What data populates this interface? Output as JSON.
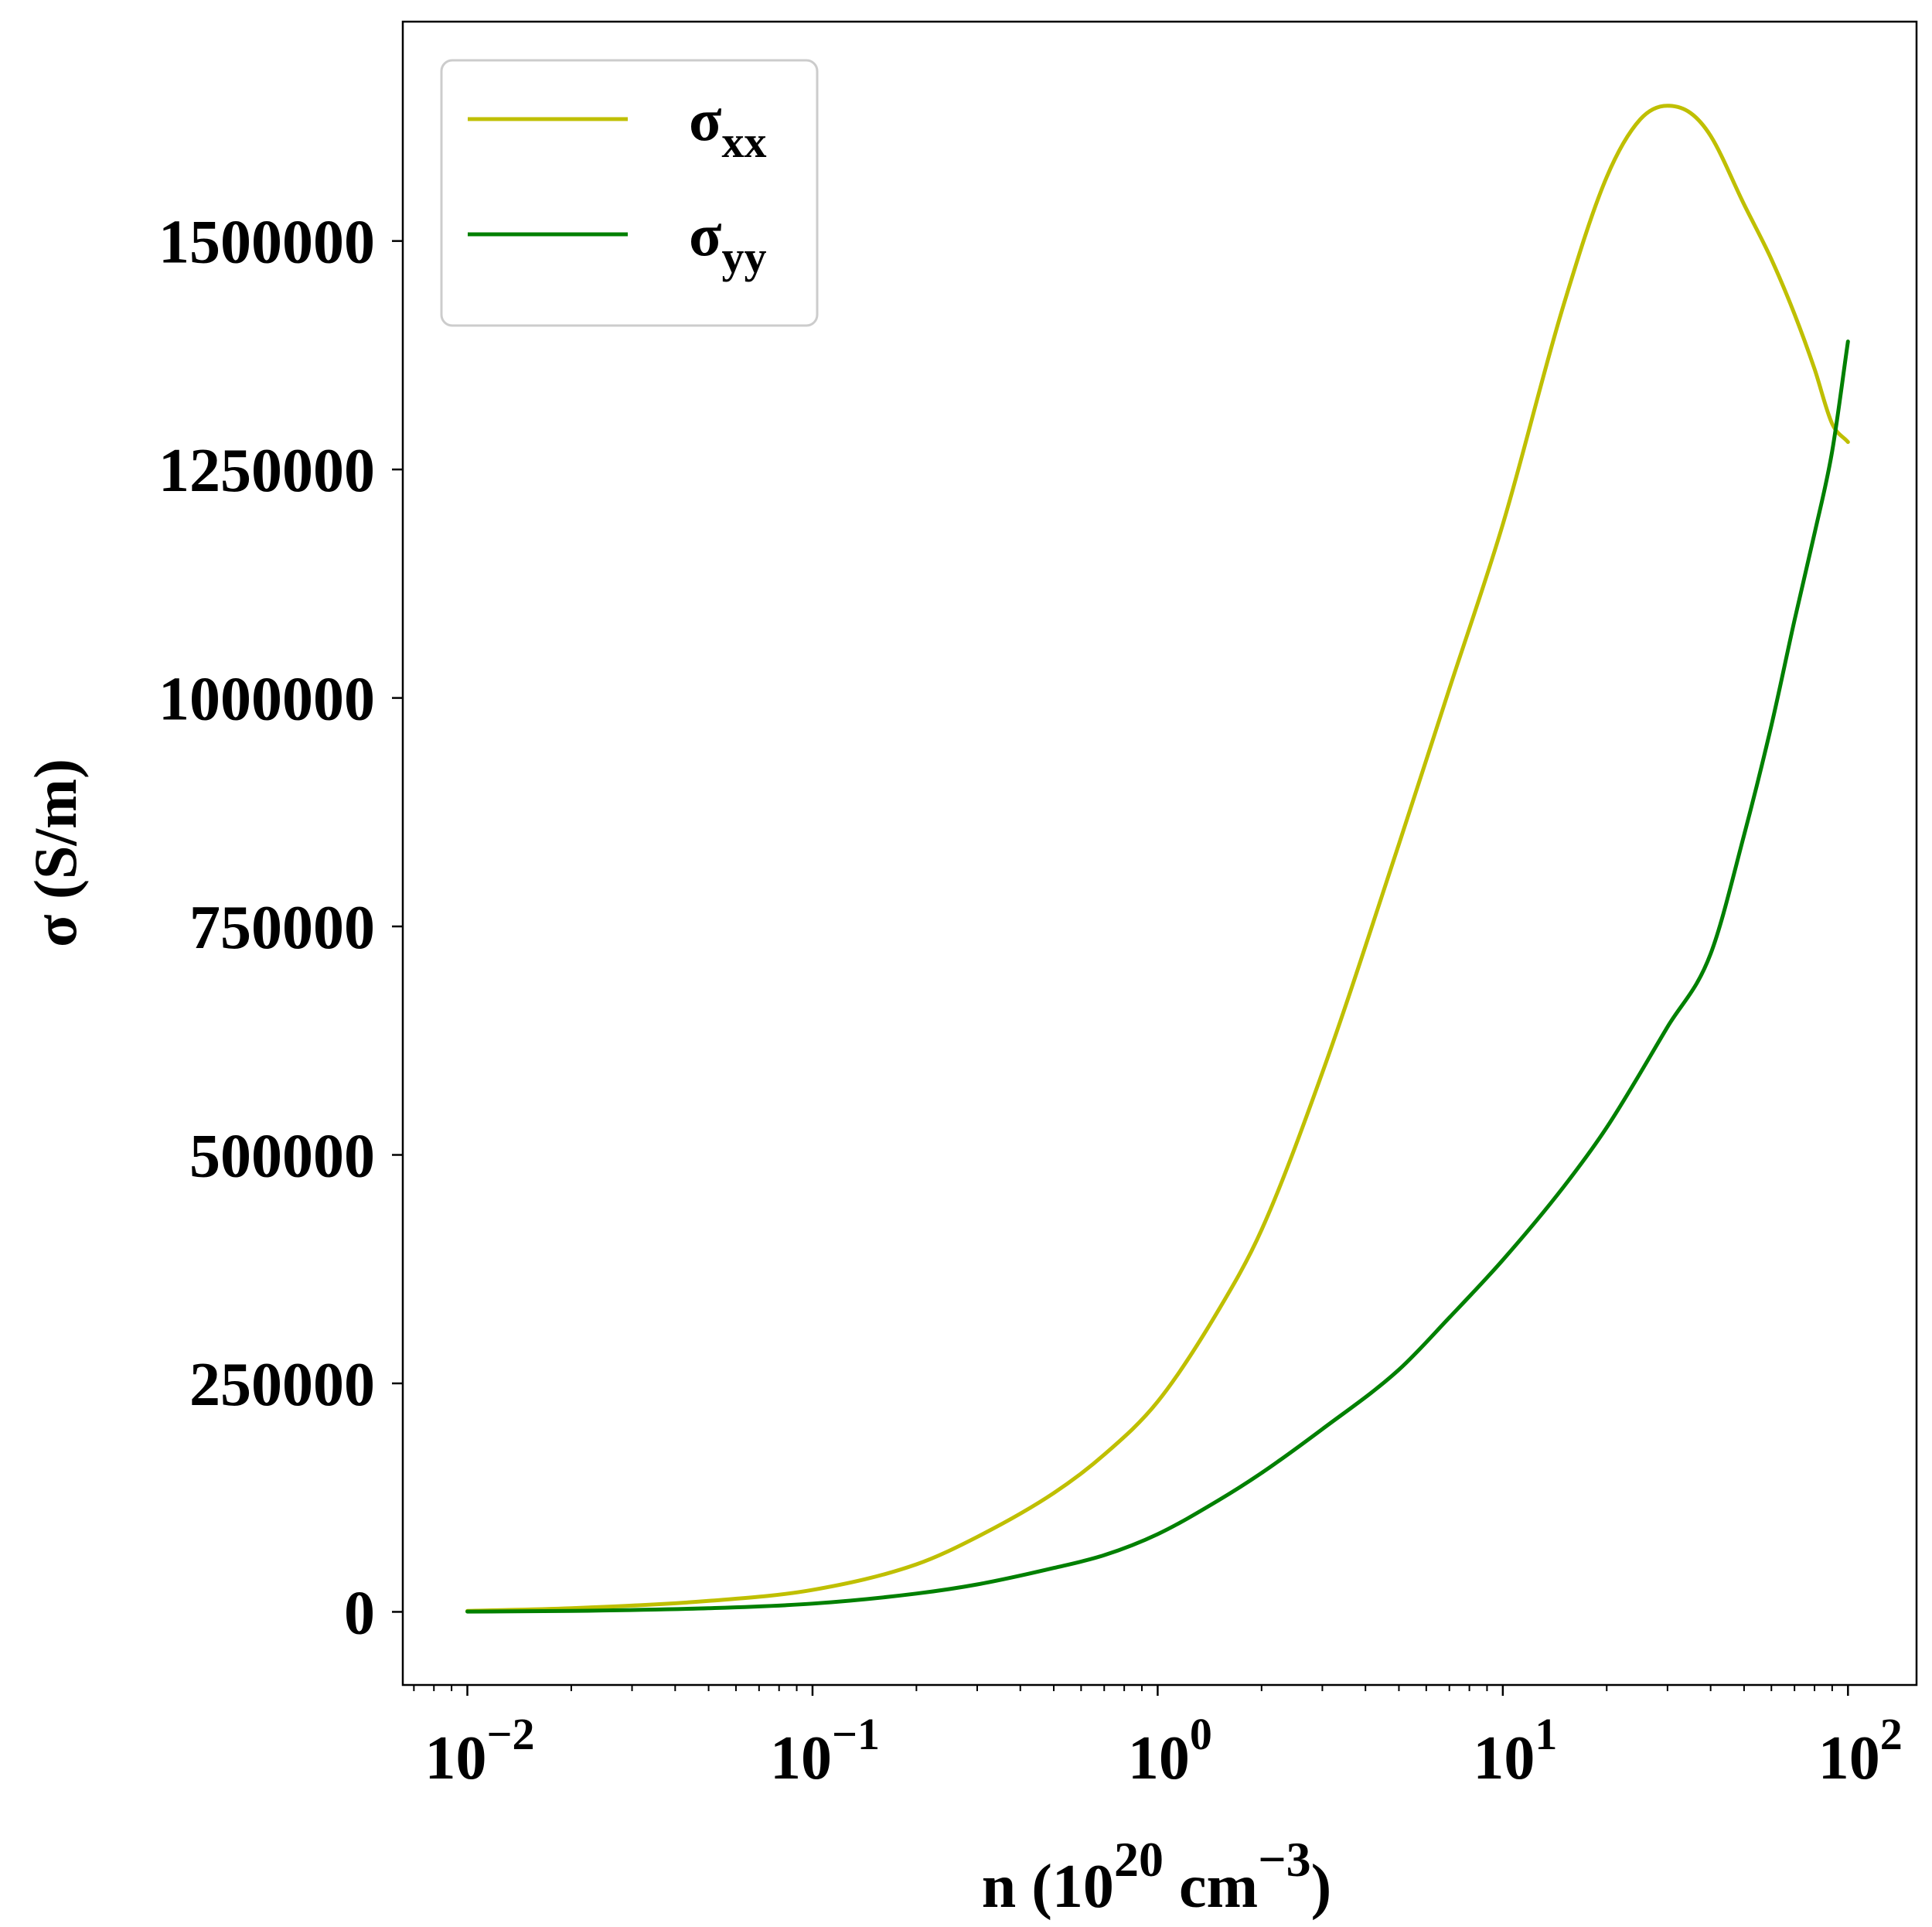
{
  "chart_data": {
    "type": "line",
    "x_scale": "log",
    "xlabel": {
      "base": "n (10",
      "sup1": "20",
      "mid": " cm",
      "sup2": "−3",
      "end": ")"
    },
    "ylabel": "σ (S/m)",
    "xlim": [
      0.0065,
      158
    ],
    "ylim": [
      -80000,
      1740000
    ],
    "x_ticks": [
      {
        "value": 0.01,
        "base": "10",
        "exp": "−2"
      },
      {
        "value": 0.1,
        "base": "10",
        "exp": "−1"
      },
      {
        "value": 1,
        "base": "10",
        "exp": "0"
      },
      {
        "value": 10,
        "base": "10",
        "exp": "1"
      },
      {
        "value": 100,
        "base": "10",
        "exp": "2"
      }
    ],
    "y_ticks": [
      {
        "value": 0,
        "label": "0"
      },
      {
        "value": 250000,
        "label": "250000"
      },
      {
        "value": 500000,
        "label": "500000"
      },
      {
        "value": 750000,
        "label": "750000"
      },
      {
        "value": 1000000,
        "label": "1000000"
      },
      {
        "value": 1250000,
        "label": "1250000"
      },
      {
        "value": 1500000,
        "label": "1500000"
      }
    ],
    "grid": false,
    "legend": {
      "position": "top-left"
    },
    "series": [
      {
        "name_main": "σ",
        "name_sub": "xx",
        "color": "#bfbf00",
        "x": [
          0.01,
          0.02,
          0.05,
          0.1,
          0.2,
          0.3,
          0.5,
          0.7,
          1,
          1.5,
          2,
          3,
          5,
          7,
          10,
          15,
          20,
          25,
          30,
          35,
          40,
          50,
          60,
          70,
          80,
          90,
          100
        ],
        "y": [
          1000,
          4000,
          12000,
          24000,
          52000,
          82000,
          130000,
          172000,
          230000,
          330000,
          418000,
          590000,
          840000,
          1010000,
          1190000,
          1430000,
          1570000,
          1633000,
          1648000,
          1640000,
          1615000,
          1540000,
          1480000,
          1420000,
          1360000,
          1300000,
          1280000
        ]
      },
      {
        "name_main": "σ",
        "name_sub": "yy",
        "color": "#008000",
        "x": [
          0.01,
          0.02,
          0.05,
          0.1,
          0.2,
          0.3,
          0.5,
          0.7,
          1,
          1.5,
          2,
          3,
          5,
          7,
          10,
          15,
          20,
          30,
          40,
          50,
          60,
          70,
          80,
          90,
          100
        ],
        "y": [
          300,
          1000,
          4000,
          9000,
          20000,
          30000,
          48000,
          62000,
          85000,
          122000,
          152000,
          200000,
          265000,
          322000,
          385000,
          465000,
          530000,
          640000,
          720000,
          850000,
          970000,
          1085000,
          1180000,
          1270000,
          1390000
        ]
      }
    ]
  }
}
